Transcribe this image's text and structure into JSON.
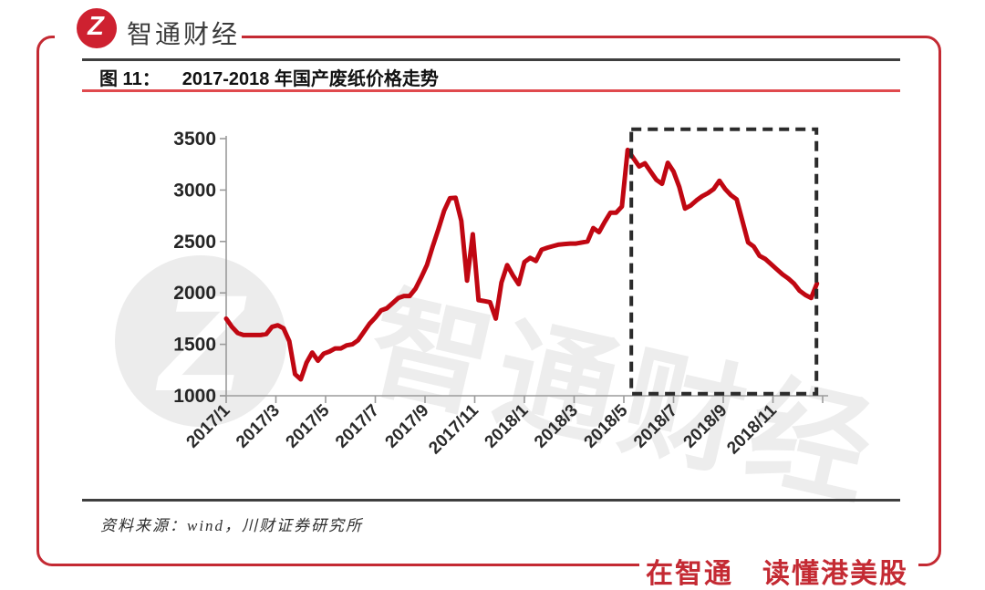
{
  "brand": {
    "logo_glyph": "Z",
    "name": "智通财经"
  },
  "figure": {
    "label": "图 11：",
    "title": "2017-2018 年国产废纸价格走势"
  },
  "chart_data": {
    "type": "line",
    "title": "2017-2018 年国产废纸价格走势",
    "x_tick_labels": [
      "2017/1",
      "2017/3",
      "2017/5",
      "2017/7",
      "2017/9",
      "2017/11",
      "2018/1",
      "2018/3",
      "2018/5",
      "2018/7",
      "2018/9",
      "2018/11"
    ],
    "x_tick_months": [
      0,
      2,
      4,
      6,
      8,
      10,
      12,
      14,
      16,
      18,
      20,
      22
    ],
    "x_axis_total_months": 24,
    "yticks": [
      1000,
      1500,
      2000,
      2500,
      3000,
      3500
    ],
    "ylim": [
      1000,
      3500
    ],
    "grid": false,
    "legend": "none",
    "watermark": "智通财经",
    "series": [
      {
        "name": "国产废纸价格",
        "color": "#C00712",
        "frequency": "weekly",
        "x_start": "2017/1",
        "x_end": "2018/12",
        "values": [
          1750,
          1670,
          1610,
          1590,
          1590,
          1590,
          1590,
          1600,
          1670,
          1685,
          1655,
          1530,
          1210,
          1160,
          1320,
          1420,
          1340,
          1410,
          1430,
          1460,
          1460,
          1490,
          1500,
          1540,
          1620,
          1700,
          1760,
          1830,
          1850,
          1900,
          1950,
          1970,
          1970,
          2040,
          2150,
          2270,
          2450,
          2620,
          2800,
          2920,
          2925,
          2700,
          2120,
          2570,
          1930,
          1920,
          1910,
          1750,
          2100,
          2270,
          2170,
          2085,
          2300,
          2340,
          2310,
          2420,
          2440,
          2455,
          2470,
          2475,
          2480,
          2480,
          2490,
          2500,
          2630,
          2590,
          2690,
          2780,
          2780,
          2840,
          3390,
          3310,
          3230,
          3260,
          3180,
          3100,
          3060,
          3265,
          3180,
          3030,
          2820,
          2850,
          2900,
          2940,
          2970,
          3010,
          3090,
          3010,
          2950,
          2910,
          2700,
          2490,
          2450,
          2360,
          2330,
          2280,
          2230,
          2180,
          2140,
          2090,
          2020,
          1980,
          1950,
          2090
        ]
      }
    ],
    "annotation_box": {
      "style": "black-dashed-rectangle",
      "x_start_month": 16.3,
      "x_end_month": 23.75,
      "value_bottom": 1020,
      "value_top": 3590
    }
  },
  "footer": {
    "source": "资料来源：wind，川财证券研究所",
    "slogan": "在智通　读懂港美股"
  },
  "colors": {
    "brand_red": "#C42A33",
    "logo_red": "#CE2130",
    "line_red": "#C00712",
    "title_rule_red": "#E04A4E",
    "dark_rule": "#3F3F3F",
    "axis_gray": "#9B9B9B",
    "label_dark": "#262626",
    "watermark_gray": "#ECECEC",
    "dash_black": "#2B2B2B"
  }
}
